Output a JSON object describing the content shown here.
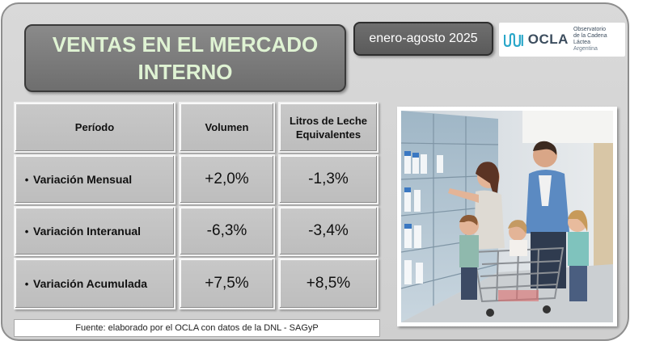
{
  "title": "VENTAS EN EL MERCADO INTERNO",
  "period": "enero-agosto 2025",
  "logo": {
    "name": "OCLA",
    "line1": "Observatorio",
    "line2": "de la Cadena Láctea",
    "line3": "Argentina",
    "accent_color": "#2aa7c9"
  },
  "table": {
    "headers": [
      "Período",
      "Volumen",
      "Litros de Leche Equivalentes"
    ],
    "rows": [
      {
        "label": "Variación Mensual",
        "volumen": "+2,0%",
        "litros": "-1,3%"
      },
      {
        "label": "Variación Interanual",
        "volumen": "-6,3%",
        "litros": "-3,4%"
      },
      {
        "label": "Variación Acumulada",
        "volumen": "+7,5%",
        "litros": "+8,5%"
      }
    ],
    "bullet": "•"
  },
  "source": "Fuente: elaborado por el OCLA con datos de la DNL - SAGyP",
  "photo_icon": "family-supermarket-dairy-photo",
  "colors": {
    "panel": "#d3d3d3",
    "title_box": "#7a7a7a",
    "title_text": "#dff3d3",
    "period_box": "#636363",
    "cell": "#c3c3c3"
  }
}
